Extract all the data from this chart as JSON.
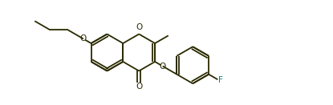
{
  "bg_color": "#ffffff",
  "bond_color": "#2a2a00",
  "O_color": "#2a2a00",
  "F_color": "#008080",
  "figsize": [
    4.15,
    1.31
  ],
  "dpi": 100,
  "lw": 1.3,
  "fontsize": 7.5,
  "r": 0.62,
  "xlim": [
    -0.5,
    10.5
  ],
  "ylim": [
    -0.3,
    3.2
  ]
}
